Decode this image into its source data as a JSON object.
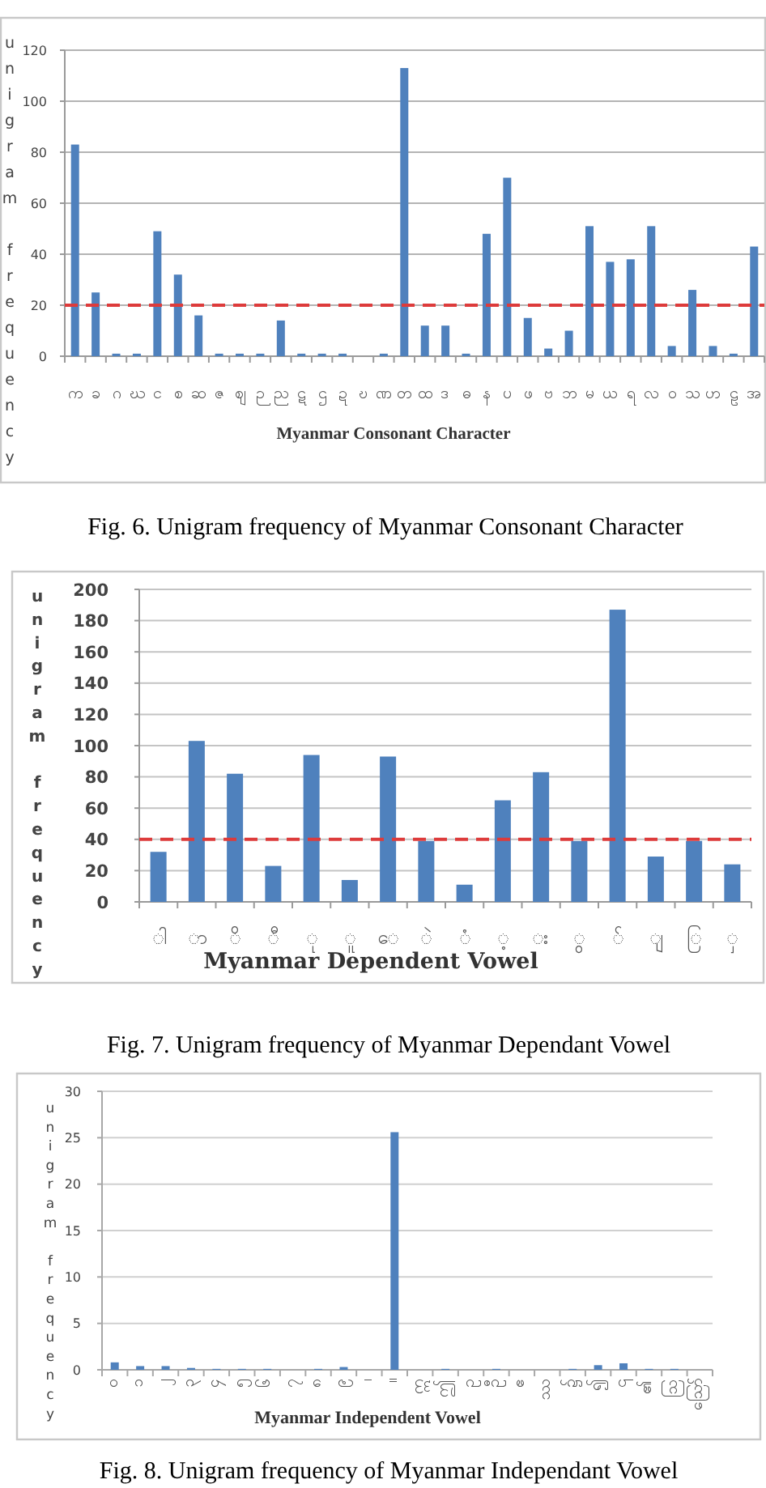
{
  "chart_data": [
    {
      "type": "bar",
      "title": "Fig. 6. Unigram frequency of Myanmar Consonant Character",
      "xlabel": "Myanmar Consonant Character",
      "ylabel": "unigram frequency",
      "categories": [
        "က",
        "ခ",
        "ဂ",
        "ဃ",
        "င",
        "စ",
        "ဆ",
        "ဇ",
        "ဈ",
        "ဉ",
        "ည",
        "ဋ",
        "ဌ",
        "ဍ",
        "ဎ",
        "ဏ",
        "တ",
        "ထ",
        "ဒ",
        "ဓ",
        "န",
        "ပ",
        "ဖ",
        "ဗ",
        "ဘ",
        "မ",
        "ယ",
        "ရ",
        "လ",
        "ဝ",
        "သ",
        "ဟ",
        "ဠ",
        "အ"
      ],
      "values": [
        83,
        25,
        1,
        1,
        49,
        32,
        16,
        1,
        1,
        1,
        14,
        1,
        1,
        1,
        0,
        1,
        113,
        12,
        12,
        1,
        48,
        70,
        15,
        3,
        10,
        51,
        37,
        38,
        51,
        4,
        26,
        4,
        1,
        43
      ],
      "color": "#4f81bd",
      "ylim": [
        0,
        120
      ],
      "yticks": [
        0,
        20,
        40,
        60,
        80,
        100,
        120
      ],
      "grid": "y",
      "ref_lines": [
        {
          "axis": "y",
          "value": 20,
          "color": "#dd3b3b",
          "line_style": "dashed"
        }
      ]
    },
    {
      "type": "bar",
      "title": "Fig. 7. Unigram frequency of Myanmar Dependant Vowel",
      "xlabel": "Myanmar Dependent Vowel",
      "ylabel": "unigram frequency",
      "categories": [
        "ါ",
        "ာ",
        "ိ",
        "ီ",
        "ု",
        "ူ",
        "ေ",
        "ဲ",
        "ံ",
        "့",
        "း",
        "ွ",
        "်",
        "ျ",
        "ြ",
        "ှ"
      ],
      "values": [
        32,
        103,
        82,
        23,
        94,
        14,
        93,
        39,
        11,
        65,
        83,
        39,
        187,
        29,
        39,
        24
      ],
      "color": "#4f81bd",
      "ylim": [
        0,
        200
      ],
      "yticks": [
        0,
        20,
        40,
        60,
        80,
        100,
        120,
        140,
        160,
        180,
        200
      ],
      "grid": "y",
      "ref_lines": [
        {
          "axis": "y",
          "value": 40,
          "color": "#dd3b3b",
          "line_style": "dashed"
        }
      ]
    },
    {
      "type": "bar",
      "title": "Fig. 8. Unigram frequency of Myanmar Independant Vowel",
      "xlabel": "Myanmar Independent Vowel",
      "ylabel": "unigram frequency",
      "categories": [
        "၀",
        "၁",
        "၂",
        "၃",
        "၄",
        "၅",
        "၆",
        "၇",
        "၈",
        "၉",
        "၊",
        "။",
        "ဣ",
        "ဤ",
        "ဥ",
        "ဦ",
        "ဧ",
        "ဿ",
        "၌",
        "၍",
        "၎",
        "၏",
        "ဩ",
        "ဪ"
      ],
      "values": [
        0.8,
        0.4,
        0.4,
        0.2,
        0.1,
        0.1,
        0.1,
        0,
        0.1,
        0.3,
        0,
        25.6,
        0,
        0.1,
        0,
        0.1,
        0,
        0,
        0.1,
        0.5,
        0.7,
        0.1,
        0.1,
        0
      ],
      "color": "#4f81bd",
      "ylim": [
        0,
        30
      ],
      "yticks": [
        0,
        5,
        10,
        15,
        20,
        25,
        30
      ],
      "grid": "y"
    }
  ]
}
